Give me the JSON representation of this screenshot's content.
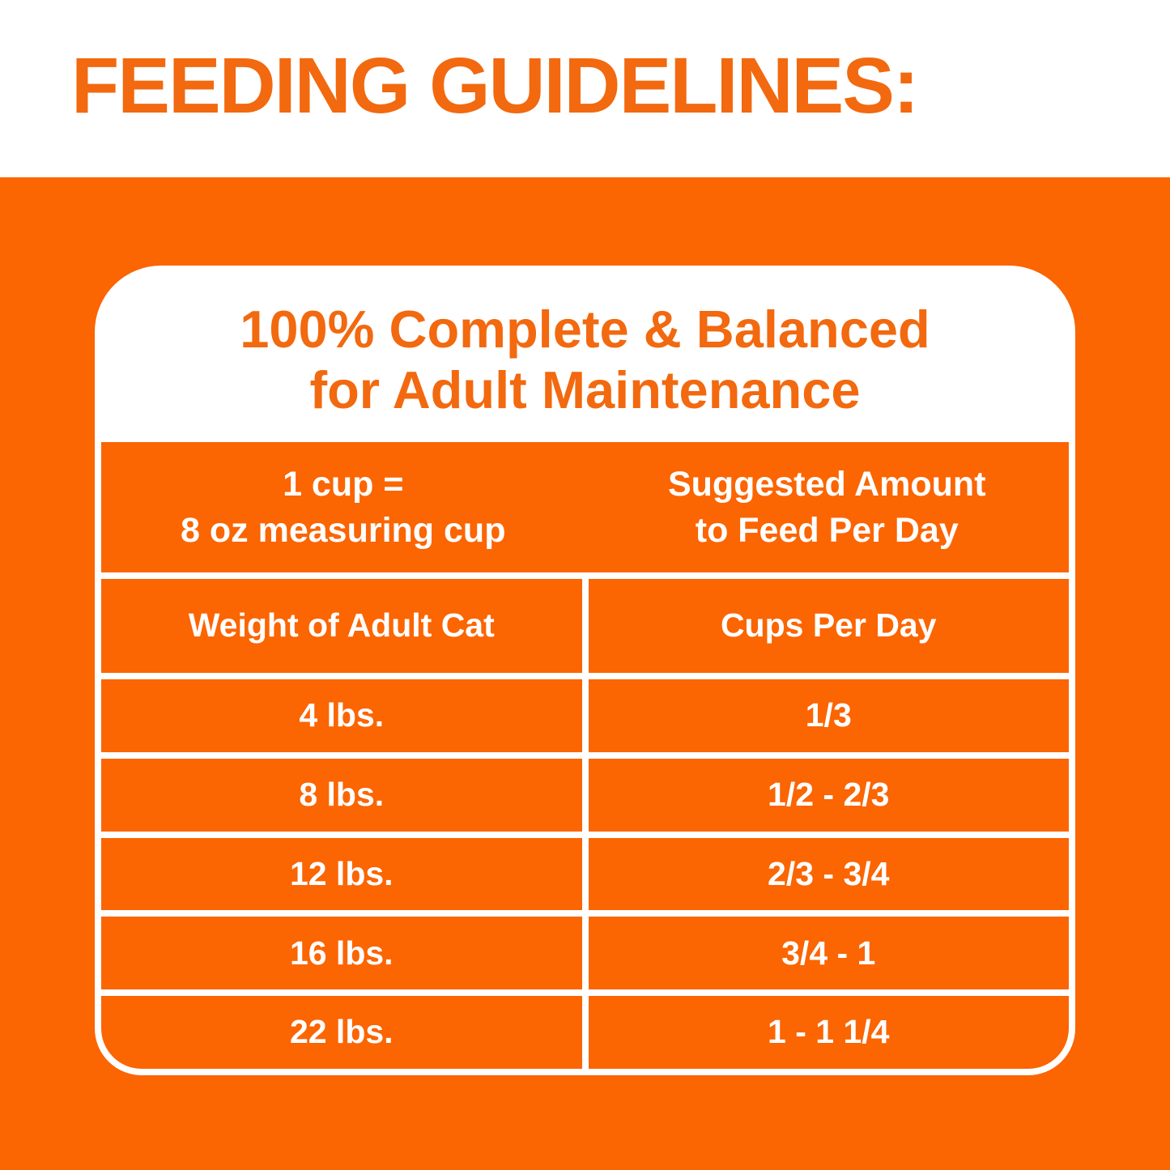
{
  "title": "FEEDING GUIDELINES:",
  "panel": {
    "heading_line1": "100% Complete & Balanced",
    "heading_line2": "for Adult Maintenance",
    "measure_header": {
      "line1": "1 cup =",
      "line2": "8 oz measuring cup"
    },
    "amount_header": {
      "line1": "Suggested Amount",
      "line2": "to Feed Per Day"
    },
    "columns": [
      "Weight of Adult Cat",
      "Cups Per Day"
    ],
    "rows": [
      {
        "weight": "4 lbs.",
        "cups": "1/3"
      },
      {
        "weight": "8 lbs.",
        "cups": "1/2 - 2/3"
      },
      {
        "weight": "12 lbs.",
        "cups": "2/3 - 3/4"
      },
      {
        "weight": "16 lbs.",
        "cups": "3/4 - 1"
      },
      {
        "weight": "22 lbs.",
        "cups": "1 - 1 1/4"
      }
    ]
  },
  "colors": {
    "background_orange": "#FB6502",
    "text_orange": "#F2690F",
    "white": "#FFFFFF"
  },
  "chart_data": {
    "type": "table",
    "title": "Feeding Guidelines — 100% Complete & Balanced for Adult Maintenance",
    "note": "1 cup = 8 oz measuring cup; Suggested Amount to Feed Per Day",
    "columns": [
      "Weight of Adult Cat",
      "Cups Per Day"
    ],
    "rows": [
      [
        "4 lbs.",
        "1/3"
      ],
      [
        "8 lbs.",
        "1/2 - 2/3"
      ],
      [
        "12 lbs.",
        "2/3 - 3/4"
      ],
      [
        "16 lbs.",
        "3/4 - 1"
      ],
      [
        "22 lbs.",
        "1 - 1 1/4"
      ]
    ]
  }
}
